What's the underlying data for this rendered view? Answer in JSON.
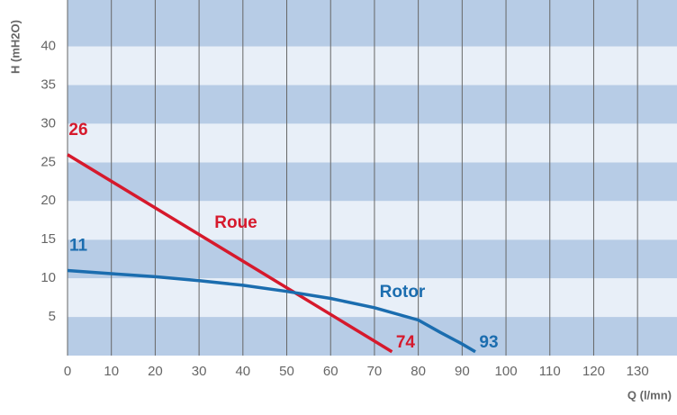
{
  "chart_data": {
    "type": "line",
    "xlabel": "Q (l/mn)",
    "ylabel": "H (mH2O)",
    "xlim": [
      0,
      139
    ],
    "ylim": [
      0,
      46
    ],
    "xticks": [
      0,
      10,
      20,
      30,
      40,
      50,
      60,
      70,
      80,
      90,
      100,
      110,
      120,
      130
    ],
    "yticks": [
      5,
      10,
      15,
      20,
      25,
      30,
      35,
      40
    ],
    "band_colors": [
      "#b7cce6",
      "#e8eff8"
    ],
    "grid_color": "#666666",
    "series": [
      {
        "name": "Roue",
        "color": "#d6192c",
        "x": [
          0,
          74
        ],
        "values": [
          26,
          0.5
        ]
      },
      {
        "name": "Rotor",
        "color": "#1b6daf",
        "x": [
          0,
          10,
          20,
          30,
          40,
          50,
          60,
          70,
          80,
          85,
          90,
          93
        ],
        "values": [
          11,
          10.6,
          10.2,
          9.7,
          9.1,
          8.3,
          7.4,
          6.2,
          4.6,
          3,
          1.5,
          0.5
        ]
      }
    ]
  }
}
